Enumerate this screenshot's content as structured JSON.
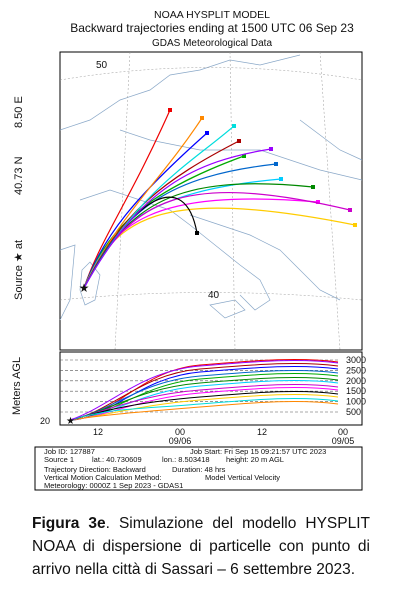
{
  "header": {
    "model": "NOAA HYSPLIT MODEL",
    "title": "Backward trajectories ending at 1500 UTC 06 Sep 23",
    "subtitle": "GDAS Meteorological Data"
  },
  "side_label": {
    "source": "Source ★ at",
    "lat": "40.73 N",
    "lon": "8.50 E"
  },
  "map_labels": [
    "50",
    "40"
  ],
  "profile": {
    "y_label": "Meters AGL",
    "levels": [
      "3000",
      "2500",
      "2000",
      "1500",
      "1000",
      "500"
    ],
    "source_height": "20",
    "x_labels": [
      "12",
      "00",
      "09/06",
      "12",
      "00",
      "09/05"
    ]
  },
  "info": {
    "job_id": "Job ID: 127887",
    "job_start": "Job Start: Fri Sep 15 09:21:57 UTC 2023",
    "source": "Source 1",
    "lat": "lat.: 40.730609",
    "lon": "lon.: 8.503418",
    "height": "height: 20 m AGL",
    "direction": "Trajectory Direction: Backward",
    "duration": "Duration: 48 hrs",
    "vertical": "Vertical Motion Calculation Method:",
    "vertical_value": "Model Vertical Velocity",
    "meteo": "Meteorology: 0000Z 1 Sep 2023 - GDAS1"
  },
  "caption": {
    "label": "Figura 3e",
    "text": ". Simulazione del modello HYSPLIT NOAA di dispersione di particelle con punto di arrivo nella città di Sassari – 6 settembre 2023."
  }
}
